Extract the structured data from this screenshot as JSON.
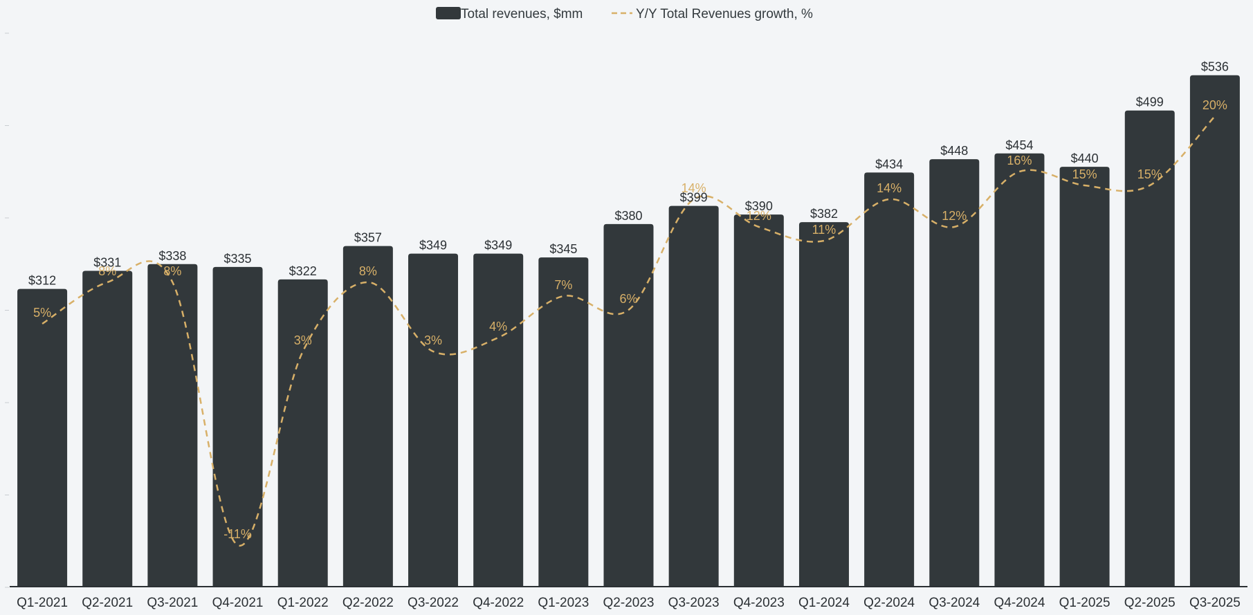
{
  "chart_data": {
    "type": "bar",
    "categories": [
      "Q1-2021",
      "Q2-2021",
      "Q3-2021",
      "Q4-2021",
      "Q1-2022",
      "Q2-2022",
      "Q3-2022",
      "Q4-2022",
      "Q1-2023",
      "Q2-2023",
      "Q3-2023",
      "Q4-2023",
      "Q1-2024",
      "Q2-2024",
      "Q3-2024",
      "Q4-2024",
      "Q1-2025",
      "Q2-2025",
      "Q3-2025"
    ],
    "series": [
      {
        "name": "Total revenues, $mm",
        "type": "bar",
        "values": [
          312,
          331,
          338,
          335,
          322,
          357,
          349,
          349,
          345,
          380,
          399,
          390,
          382,
          434,
          448,
          454,
          440,
          499,
          536
        ],
        "labels": [
          "$312",
          "$331",
          "$338",
          "$335",
          "$322",
          "$357",
          "$349",
          "$349",
          "$345",
          "$380",
          "$399",
          "$390",
          "$382",
          "$434",
          "$448",
          "$454",
          "$440",
          "$499",
          "$536"
        ]
      },
      {
        "name": "Y/Y Total Revenues growth, %",
        "type": "line",
        "style": "dashed",
        "values": [
          5,
          8,
          8,
          -11,
          3,
          8,
          3,
          4,
          7,
          6,
          14,
          12,
          11,
          14,
          12,
          16,
          15,
          15,
          20
        ],
        "labels": [
          "5%",
          "8%",
          "8%",
          "-11%",
          "3%",
          "8%",
          "3%",
          "4%",
          "7%",
          "6%",
          "14%",
          "12%",
          "11%",
          "14%",
          "12%",
          "16%",
          "15%",
          "15%",
          "20%"
        ]
      }
    ],
    "ylim": [
      0,
      580
    ],
    "y2lim": [
      -14,
      26
    ],
    "legend_position": "top-center",
    "colors": {
      "bar": "#32383b",
      "line": "#d8b068",
      "background": "#f3f5f7"
    }
  }
}
